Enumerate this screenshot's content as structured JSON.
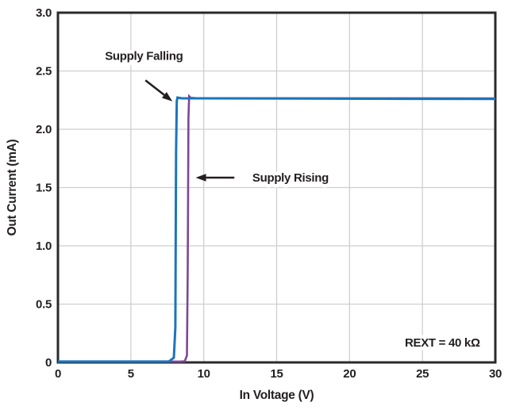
{
  "figure": {
    "background": "#ffffff",
    "text_color": "#231f20",
    "grid_color": "#cfcfcf",
    "frame_color": "#2a2a2c",
    "arrow_color": "#231f20"
  },
  "chart_data": {
    "type": "line",
    "title": "",
    "xlabel": "In Voltage (V)",
    "ylabel": "Out Current (mA)",
    "xlim": [
      0,
      30
    ],
    "ylim": [
      0,
      3.0
    ],
    "grid": true,
    "legend_position": "none",
    "xticks": [
      0,
      5,
      10,
      15,
      20,
      25,
      30
    ],
    "xtick_labels": [
      "0",
      "5",
      "10",
      "15",
      "20",
      "25",
      "30"
    ],
    "yticks": [
      0,
      0.5,
      1.0,
      1.5,
      2.0,
      2.5,
      3.0
    ],
    "ytick_labels": [
      "0",
      "0.5",
      "1.0",
      "1.5",
      "2.0",
      "2.5",
      "3.0"
    ],
    "series": [
      {
        "name": "Supply Falling",
        "color": "#1b75bc",
        "width": 3,
        "points": [
          [
            0,
            0
          ],
          [
            7.2,
            0
          ],
          [
            7.6,
            0.005
          ],
          [
            7.95,
            0.04
          ],
          [
            8.05,
            0.3
          ],
          [
            8.1,
            1.8
          ],
          [
            8.15,
            2.24
          ],
          [
            8.2,
            2.272
          ],
          [
            8.5,
            2.265
          ],
          [
            30,
            2.26
          ]
        ]
      },
      {
        "name": "Supply Rising",
        "color": "#7d4698",
        "width": 2.6,
        "points": [
          [
            0,
            0
          ],
          [
            8.35,
            0
          ],
          [
            8.7,
            0.01
          ],
          [
            8.85,
            0.06
          ],
          [
            8.9,
            0.8
          ],
          [
            8.95,
            2.1
          ],
          [
            9.0,
            2.283
          ],
          [
            9.1,
            2.27
          ],
          [
            9.5,
            2.267
          ],
          [
            30,
            2.265
          ]
        ]
      }
    ],
    "annotations": [
      {
        "id": "supply-falling-label",
        "text": "Supply Falling",
        "x": 5.9,
        "y": 2.63,
        "anchor": "middle",
        "arrow": {
          "x1": 6.0,
          "y1": 2.42,
          "x2": 7.85,
          "y2": 2.24
        }
      },
      {
        "id": "supply-rising-label",
        "text": "Supply Rising",
        "x": 15.95,
        "y": 1.585,
        "anchor": "middle",
        "arrow": {
          "x1": 12.1,
          "y1": 1.585,
          "x2": 9.45,
          "y2": 1.585
        }
      },
      {
        "id": "rext-annotation",
        "text": "REXT = 40 kΩ",
        "x": 28.95,
        "y": 0.17,
        "anchor": "end"
      }
    ]
  }
}
